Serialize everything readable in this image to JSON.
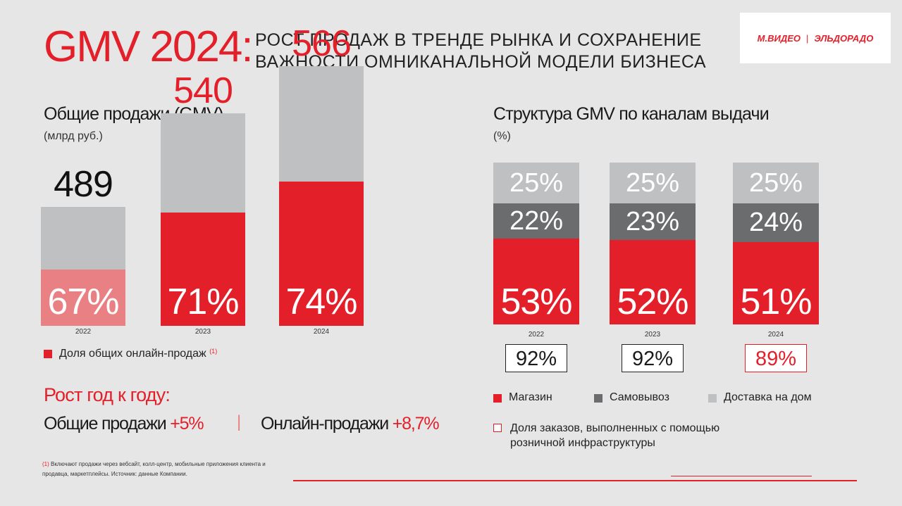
{
  "header": {
    "title": "GMV 2024:",
    "subtitle_line1": "РОСТ ПРОДАЖ В ТРЕНДЕ РЫНКА И СОХРАНЕНИЕ",
    "subtitle_line2": "ВАЖНОСТИ ОМНИКАНАЛЬНОЙ МОДЕЛИ БИЗНЕСА",
    "logo_left": "М.ВИДЕО",
    "logo_sep": "|",
    "logo_right": "ЭЛЬДОРАДО"
  },
  "colors": {
    "accent": "#e3202a",
    "light_red": "#e98083",
    "light_gray": "#bfc0c2",
    "dark_gray": "#6b6c6e"
  },
  "left_chart": {
    "title": "Общие продажи (GMV)",
    "unit": "(млрд руб.)",
    "legend_marker": "■",
    "legend_label": "Доля общих онлайн-продаж",
    "legend_note": "(1)",
    "growth_title": "Рост год к году:",
    "growth_total_label": "Общие продажи",
    "growth_total_value": "+5%",
    "growth_divider": "|",
    "growth_online_label": "Онлайн-продажи",
    "growth_online_value": "+8,7%"
  },
  "right_chart": {
    "title": "Структура GMV по каналам выдачи",
    "unit": "(%)",
    "legend": [
      "Магазин",
      "Самовывоз",
      "Доставка на дом"
    ],
    "box_legend_line1": "Доля заказов, выполненных с помощью",
    "box_legend_line2": "розничной инфраструктуры"
  },
  "chart_data": [
    {
      "type": "bar",
      "title": "Общие продажи (GMV)",
      "ylabel": "(млрд руб.)",
      "categories": [
        "2022",
        "2023",
        "2024"
      ],
      "values": [
        489,
        540,
        566
      ],
      "total_labels": [
        "489",
        "540",
        "566"
      ],
      "online_share": [
        67,
        71,
        74
      ],
      "online_share_labels": [
        "67%",
        "71%",
        "74%"
      ],
      "legend": "bottom-left"
    },
    {
      "type": "bar",
      "stacked": true,
      "title": "Структура GMV по каналам выдачи",
      "ylabel": "(%)",
      "categories": [
        "2022",
        "2023",
        "2024"
      ],
      "series": [
        {
          "name": "Магазин",
          "values": [
            53,
            52,
            51
          ],
          "labels": [
            "53%",
            "52%",
            "51%"
          ]
        },
        {
          "name": "Самовывоз",
          "values": [
            22,
            23,
            24
          ],
          "labels": [
            "22%",
            "23%",
            "24%"
          ]
        },
        {
          "name": "Доставка на дом",
          "values": [
            25,
            25,
            25
          ],
          "labels": [
            "25%",
            "25%",
            "25%"
          ]
        }
      ],
      "retail_infra_share": [
        92,
        92,
        89
      ],
      "retail_infra_labels": [
        "92%",
        "92%",
        "89%"
      ],
      "legend": "bottom"
    }
  ],
  "footnote": {
    "marker": "(1)",
    "line1": " Включают продажи через вебсайт, колл-центр, мобильные приложения клиента и",
    "line2": "продавца, маркетплейсы. Источник: данные Компании."
  }
}
